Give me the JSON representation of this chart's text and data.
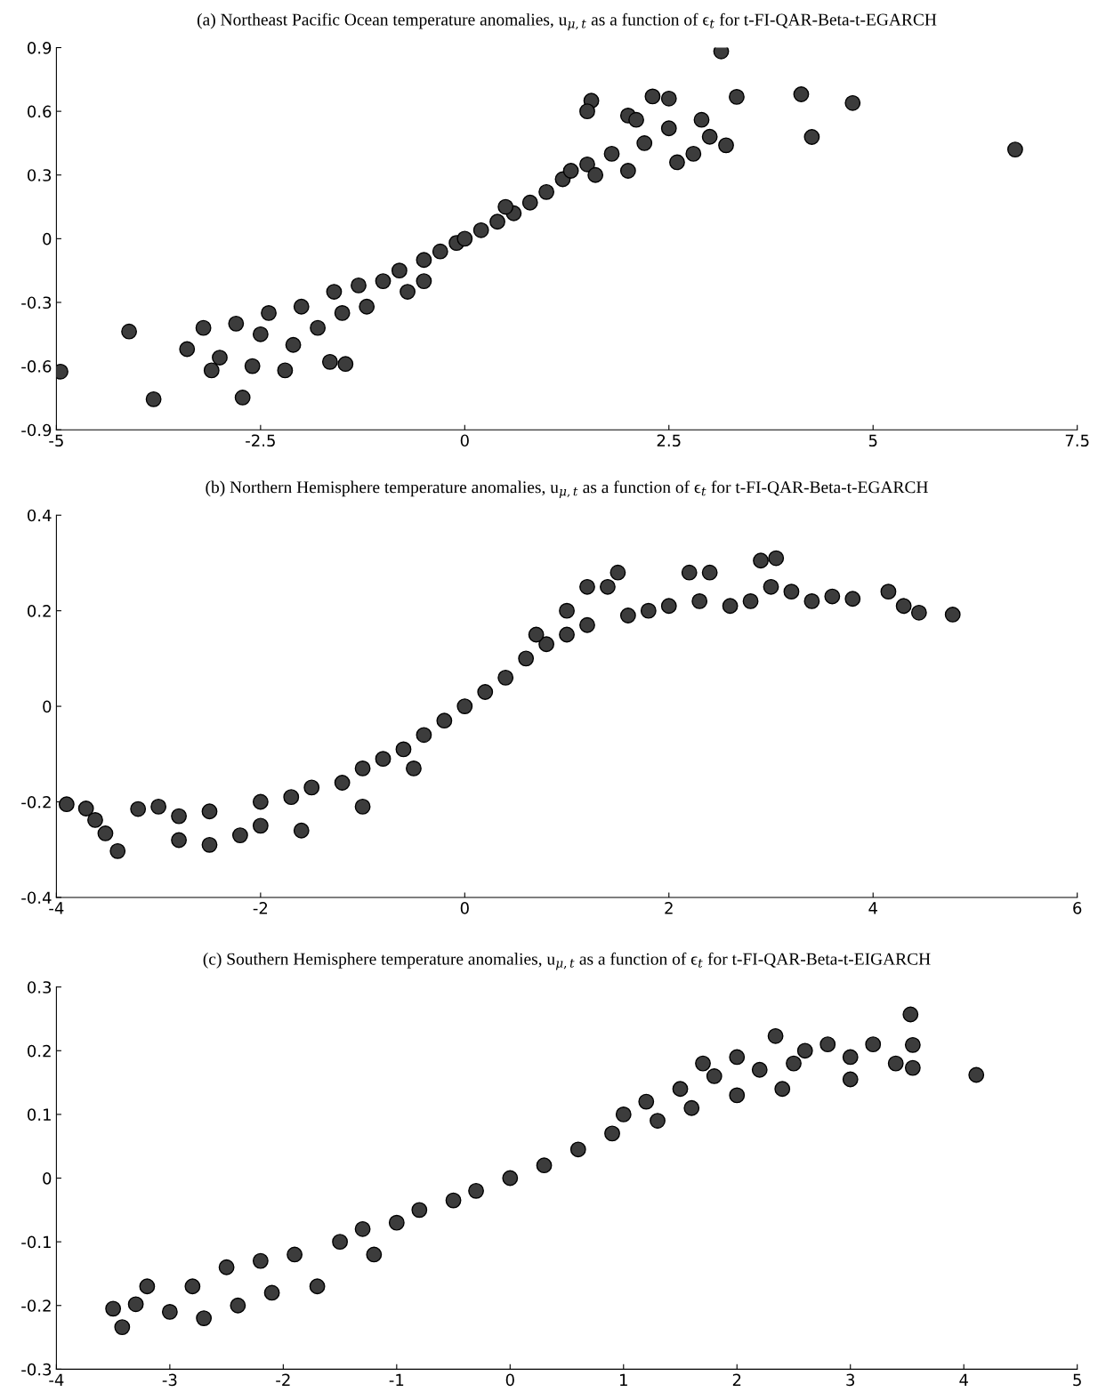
{
  "chart_data": [
    {
      "type": "scatter",
      "title": "(a) Northeast Pacific Ocean temperature anomalies, u$_{μ,t}$ as a function of ϵ$_{t}$ for t-FI-QAR-Beta-t-EGARCH",
      "marker": "circle",
      "grid": false,
      "xlim": [
        -5,
        7.5
      ],
      "ylim": [
        -0.9,
        0.9
      ],
      "xticks": [
        -5,
        -2.5,
        0,
        2.5,
        5,
        7.5
      ],
      "yticks": [
        -0.9,
        -0.6,
        -0.3,
        0,
        0.3,
        0.6,
        0.9
      ],
      "series": [
        {
          "color": "#3c3c3c",
          "x": [
            -4.95,
            -4.11,
            -3.81,
            3.14,
            3.33,
            4.12,
            4.25,
            4.75,
            6.74,
            -2.72,
            -1.65,
            -1.46,
            -3.4,
            -3.2,
            -3.0,
            -3.1,
            -2.8,
            -2.6,
            -2.5,
            -2.4,
            -2.2,
            -2.1,
            -2.0,
            -1.8,
            -1.6,
            -1.5,
            -1.3,
            -1.2,
            -1.0,
            -0.8,
            -0.7,
            -0.5,
            -0.3,
            -0.1,
            0,
            0.2,
            0.4,
            0.6,
            0.8,
            1.0,
            1.2,
            1.3,
            1.5,
            1.6,
            1.8,
            2.0,
            2.2,
            2.3,
            2.5,
            2.6,
            2.8,
            3.0,
            3.2,
            1.55,
            1.5,
            2.0,
            2.5,
            2.1,
            2.9,
            -0.5,
            0.5
          ],
          "values": [
            -0.626,
            -0.437,
            -0.756,
            0.882,
            0.668,
            0.68,
            0.479,
            0.639,
            0.42,
            -0.748,
            -0.58,
            -0.59,
            -0.52,
            -0.42,
            -0.56,
            -0.62,
            -0.4,
            -0.6,
            -0.45,
            -0.35,
            -0.62,
            -0.5,
            -0.32,
            -0.42,
            -0.25,
            -0.35,
            -0.22,
            -0.32,
            -0.2,
            -0.15,
            -0.25,
            -0.1,
            -0.06,
            -0.02,
            0,
            0.04,
            0.08,
            0.12,
            0.17,
            0.22,
            0.28,
            0.32,
            0.35,
            0.3,
            0.4,
            0.32,
            0.45,
            0.67,
            0.52,
            0.36,
            0.4,
            0.48,
            0.44,
            0.65,
            0.6,
            0.58,
            0.66,
            0.56,
            0.56,
            -0.2,
            0.15
          ]
        }
      ]
    },
    {
      "type": "scatter",
      "title": "(b) Northern Hemisphere temperature anomalies, u$_{μ,t}$ as a function of ϵ$_{t}$ for t-FI-QAR-Beta-t-EGARCH",
      "marker": "circle",
      "grid": false,
      "xlim": [
        -4,
        6
      ],
      "ylim": [
        -0.4,
        0.4
      ],
      "xticks": [
        -4,
        -2,
        0,
        2,
        4,
        6
      ],
      "yticks": [
        -0.4,
        -0.2,
        0,
        0.2,
        0.4
      ],
      "series": [
        {
          "color": "#3c3c3c",
          "x": [
            -3.9,
            -3.71,
            -3.62,
            -3.52,
            -3.4,
            -3.2,
            4.78,
            4.45,
            4.3,
            4.15,
            3.05,
            2.9,
            -3.0,
            -2.8,
            -2.8,
            -2.5,
            -2.5,
            -2.2,
            -2.0,
            -2.0,
            -1.7,
            -1.6,
            -1.5,
            -1.2,
            -1.0,
            -1.0,
            -0.8,
            -0.6,
            -0.5,
            -0.4,
            -0.2,
            0,
            0.2,
            0.4,
            0.6,
            0.8,
            1.0,
            1.2,
            1.2,
            1.4,
            1.5,
            1.6,
            1.8,
            2.0,
            2.2,
            2.3,
            2.4,
            2.6,
            2.8,
            3.0,
            3.2,
            3.4,
            3.6,
            3.8,
            1.0,
            0.7
          ],
          "values": [
            -0.205,
            -0.214,
            -0.238,
            -0.266,
            -0.303,
            -0.215,
            0.192,
            0.196,
            0.21,
            0.24,
            0.31,
            0.305,
            -0.21,
            -0.28,
            -0.23,
            -0.22,
            -0.29,
            -0.27,
            -0.2,
            -0.25,
            -0.19,
            -0.26,
            -0.17,
            -0.16,
            -0.13,
            -0.21,
            -0.11,
            -0.09,
            -0.13,
            -0.06,
            -0.03,
            0,
            0.03,
            0.06,
            0.1,
            0.13,
            0.15,
            0.17,
            0.25,
            0.25,
            0.28,
            0.19,
            0.2,
            0.21,
            0.28,
            0.22,
            0.28,
            0.21,
            0.22,
            0.25,
            0.24,
            0.22,
            0.23,
            0.225,
            0.2,
            0.15
          ]
        }
      ]
    },
    {
      "type": "scatter",
      "title": "(c) Southern Hemisphere temperature anomalies, u$_{μ,t}$ as a function of ϵ$_{t}$ for t-FI-QAR-Beta-t-EIGARCH",
      "marker": "circle",
      "grid": false,
      "xlim": [
        -4,
        5
      ],
      "ylim": [
        -0.3,
        0.3
      ],
      "xticks": [
        -4,
        -3,
        -2,
        -1,
        0,
        1,
        2,
        3,
        4,
        5
      ],
      "yticks": [
        -0.3,
        -0.2,
        -0.1,
        0,
        0.1,
        0.2,
        0.3
      ],
      "series": [
        {
          "color": "#3c3c3c",
          "x": [
            4.11,
            3.53,
            3.55,
            3.55,
            -3.5,
            -3.42,
            -3.3,
            2.34,
            -3.2,
            -3.0,
            -2.8,
            -2.7,
            -2.5,
            -2.4,
            -2.2,
            -2.1,
            -1.9,
            -1.7,
            -1.5,
            -1.3,
            -1.2,
            -1.0,
            -0.8,
            -0.5,
            -0.3,
            0,
            0.3,
            0.6,
            0.9,
            1.0,
            1.2,
            1.3,
            1.5,
            1.6,
            1.8,
            2.0,
            2.0,
            2.2,
            2.5,
            2.6,
            2.8,
            3.0,
            3.0,
            3.2,
            3.4,
            2.4,
            1.7
          ],
          "values": [
            0.162,
            0.257,
            0.209,
            0.173,
            -0.205,
            -0.234,
            -0.198,
            0.223,
            -0.17,
            -0.21,
            -0.17,
            -0.22,
            -0.14,
            -0.2,
            -0.13,
            -0.18,
            -0.12,
            -0.17,
            -0.1,
            -0.08,
            -0.12,
            -0.07,
            -0.05,
            -0.035,
            -0.02,
            0,
            0.02,
            0.045,
            0.07,
            0.1,
            0.12,
            0.09,
            0.14,
            0.11,
            0.16,
            0.13,
            0.19,
            0.17,
            0.18,
            0.2,
            0.21,
            0.19,
            0.155,
            0.21,
            0.18,
            0.14,
            0.18
          ]
        }
      ]
    }
  ]
}
